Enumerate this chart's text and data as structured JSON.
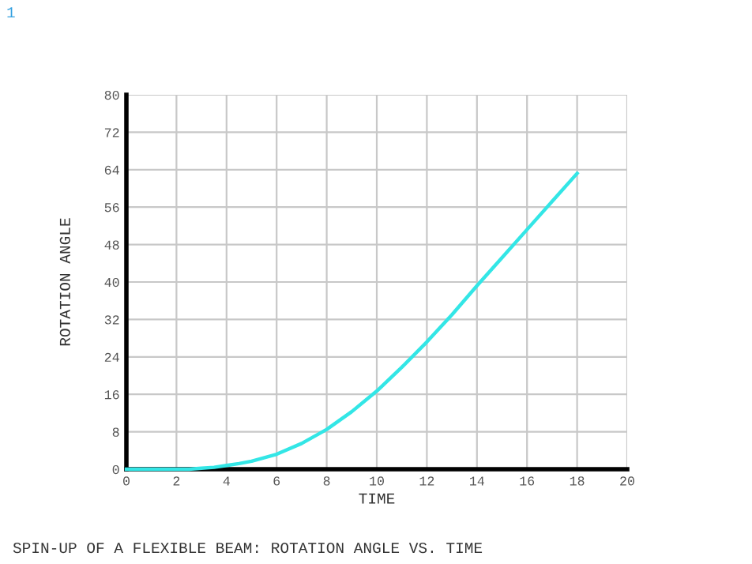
{
  "chart_data": {
    "type": "line",
    "title": "SPIN-UP OF A FLEXIBLE BEAM: ROTATION ANGLE VS. TIME",
    "xlabel": "TIME",
    "ylabel": "ROTATION ANGLE",
    "annotations": [
      "1"
    ],
    "x": [
      0,
      1,
      2,
      2.5,
      3,
      3.5,
      4,
      4.5,
      5,
      6,
      7,
      8,
      9,
      10,
      11,
      12,
      13,
      14,
      15,
      16,
      17,
      18
    ],
    "series": [
      {
        "color": "#33e6e6",
        "values": [
          0,
          0,
          0,
          0,
          0.2,
          0.4,
          0.8,
          1.2,
          1.7,
          3.2,
          5.5,
          8.5,
          12.3,
          16.7,
          21.8,
          27.2,
          33,
          39.2,
          45.2,
          51.2,
          57.2,
          63.2
        ]
      }
    ],
    "xlim": [
      0,
      20
    ],
    "ylim": [
      0,
      80
    ],
    "xticks": [
      0,
      2,
      4,
      6,
      8,
      10,
      12,
      14,
      16,
      18,
      20
    ],
    "yticks": [
      0,
      8,
      16,
      24,
      32,
      40,
      48,
      56,
      64,
      72,
      80
    ],
    "grid": true,
    "legend": false,
    "marker": "none",
    "line_style": "solid"
  }
}
